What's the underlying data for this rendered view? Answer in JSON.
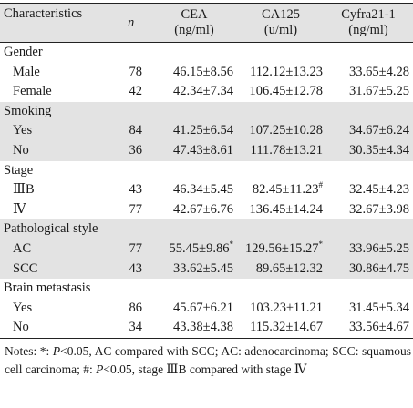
{
  "header": {
    "characteristics": "Characteristics",
    "n": "n",
    "cea": [
      "CEA",
      "(ng/ml)"
    ],
    "ca125": [
      "CA125",
      "(u/ml)"
    ],
    "cyfra": [
      "Cyfra21-1",
      "(ng/ml)"
    ]
  },
  "rows": [
    {
      "type": "group",
      "label": "Gender",
      "shade": false
    },
    {
      "type": "data",
      "label": "Male",
      "n": "78",
      "cea": "46.15±8.56",
      "ca125": "112.12±13.23",
      "cyfra": "33.65±4.28",
      "shade": false
    },
    {
      "type": "data",
      "label": "Female",
      "n": "42",
      "cea": "42.34±7.34",
      "ca125": "106.45±12.78",
      "cyfra": "31.67±5.25",
      "shade": false
    },
    {
      "type": "group",
      "label": "Smoking",
      "shade": true
    },
    {
      "type": "data",
      "label": "Yes",
      "n": "84",
      "cea": "41.25±6.54",
      "ca125": "107.25±10.28",
      "cyfra": "34.67±6.24",
      "shade": true
    },
    {
      "type": "data",
      "label": "No",
      "n": "36",
      "cea": "47.43±8.61",
      "ca125": "111.78±13.21",
      "cyfra": "30.35±4.34",
      "shade": true
    },
    {
      "type": "group",
      "label": "Stage",
      "shade": false
    },
    {
      "type": "data",
      "label": "ⅢB",
      "n": "43",
      "cea": "46.34±5.45",
      "ca125": "82.45±11.23",
      "ca125_sup": "#",
      "cyfra": "32.45±4.23",
      "shade": false
    },
    {
      "type": "data",
      "label": "Ⅳ",
      "n": "77",
      "cea": "42.67±6.76",
      "ca125": "136.45±14.24",
      "cyfra": "32.67±3.98",
      "shade": false
    },
    {
      "type": "group",
      "label": "Pathological style",
      "shade": true
    },
    {
      "type": "data",
      "label": "AC",
      "n": "77",
      "cea": "55.45±9.86",
      "cea_sup": "*",
      "ca125": "129.56±15.27",
      "ca125_sup": "*",
      "cyfra": "33.96±5.25",
      "shade": true
    },
    {
      "type": "data",
      "label": "SCC",
      "n": "43",
      "cea": "33.62±5.45",
      "ca125": "89.65±12.32",
      "cyfra": "30.86±4.75",
      "shade": true
    },
    {
      "type": "group",
      "label": "Brain metastasis",
      "shade": false
    },
    {
      "type": "data",
      "label": "Yes",
      "n": "86",
      "cea": "45.67±6.21",
      "ca125": "103.23±11.21",
      "cyfra": "31.45±5.34",
      "shade": false
    },
    {
      "type": "data",
      "label": "No",
      "n": "34",
      "cea": "43.38±4.38",
      "ca125": "115.32±14.67",
      "cyfra": "33.56±4.67",
      "shade": false
    }
  ],
  "notes": {
    "p1": "Notes: *: ",
    "p_sym": "P",
    "p2": "<0.05, AC compared with SCC; AC: adenocarcinoma; SCC: squamous cell carcinoma; #: ",
    "p_sym2": "P",
    "p3": "<0.05, stage ⅢB compared with stage Ⅳ"
  }
}
